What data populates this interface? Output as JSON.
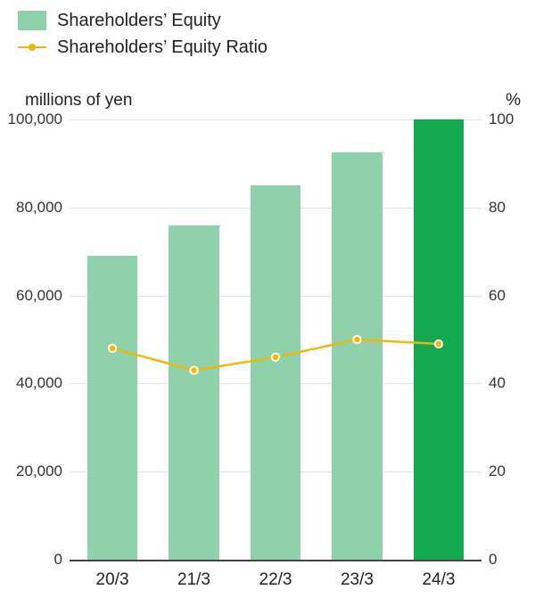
{
  "chart": {
    "type": "bar+line",
    "background_color": "#ffffff",
    "text_color": "#222222",
    "font_family": "-apple-system, Segoe UI, Helvetica Neue, Arial, sans-serif",
    "legend": {
      "items": [
        {
          "kind": "bar",
          "label": "Shareholders’ Equity",
          "color": "#8ed1ab"
        },
        {
          "kind": "line",
          "label": "Shareholders’ Equity Ratio",
          "color": "#f2b705",
          "marker_color": "#f2b705"
        }
      ],
      "label_fontsize": 20
    },
    "left_axis": {
      "title": "millions of yen",
      "title_fontsize": 19,
      "min": 0,
      "max": 100000,
      "tick_step": 20000,
      "ticks": [
        0,
        20000,
        40000,
        60000,
        80000,
        100000
      ],
      "tick_labels": [
        "0",
        "20,000",
        "40,000",
        "60,000",
        "80,000",
        "100,000"
      ],
      "tick_fontsize": 17
    },
    "right_axis": {
      "title": "%",
      "title_fontsize": 19,
      "min": 0,
      "max": 100,
      "tick_step": 20,
      "ticks": [
        0,
        20,
        40,
        60,
        80,
        100
      ],
      "tick_labels": [
        "0",
        "20",
        "40",
        "60",
        "80",
        "100"
      ],
      "tick_fontsize": 17
    },
    "categories": [
      "20/3",
      "21/3",
      "22/3",
      "23/3",
      "24/3"
    ],
    "category_fontsize": 19,
    "bars": {
      "series_label": "Shareholders’ Equity",
      "values": [
        69000,
        76000,
        85000,
        92500,
        100000
      ],
      "colors": [
        "#8ed1ab",
        "#8ed1ab",
        "#8ed1ab",
        "#8ed1ab",
        "#14a84f"
      ],
      "bar_width_frac": 0.62,
      "slot_width_frac": 0.99
    },
    "line": {
      "series_label": "Shareholders’ Equity Ratio",
      "values": [
        48,
        43,
        46,
        50,
        49
      ],
      "color": "#f2b705",
      "stroke_width": 2.4,
      "marker_radius": 4.2,
      "marker_color": "#f2b705",
      "marker_border": "#ffffff",
      "marker_border_width": 1.8
    },
    "grid": {
      "color": "#e4e4e4",
      "width": 1
    },
    "baseline_color": "#444444"
  }
}
